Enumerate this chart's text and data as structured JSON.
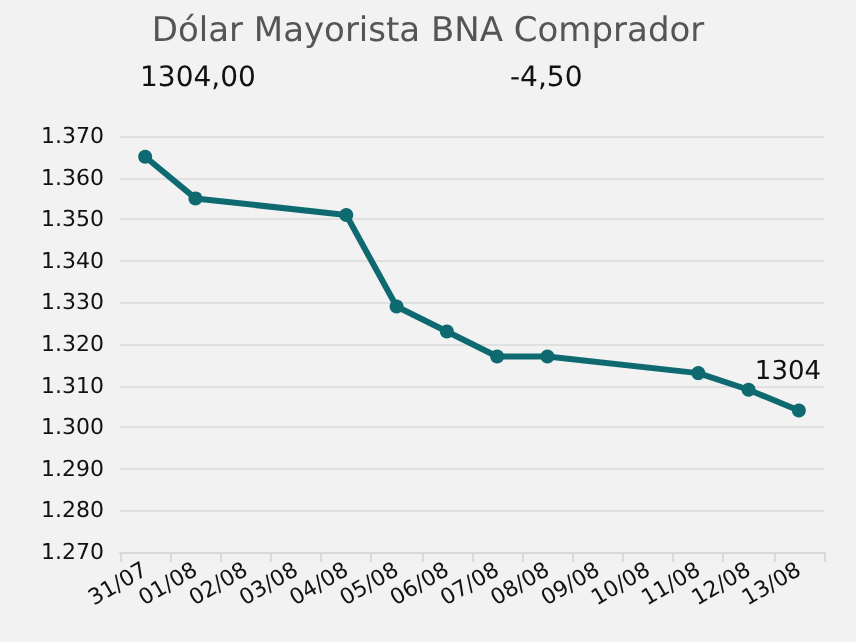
{
  "chart_data": {
    "type": "line",
    "title": "Dólar Mayorista BNA Comprador",
    "categories": [
      "31/07",
      "01/08",
      "02/08",
      "03/08",
      "04/08",
      "05/08",
      "06/08",
      "07/08",
      "08/08",
      "09/08",
      "10/08",
      "11/08",
      "12/08",
      "13/08"
    ],
    "series": [
      {
        "color": "#0e6a70",
        "values": [
          1365,
          1355,
          null,
          null,
          1351,
          1329,
          1323,
          1317,
          1317,
          null,
          null,
          1313,
          1309,
          1304
        ]
      }
    ],
    "ylim": [
      1270,
      1370
    ],
    "yticks": [
      {
        "value": 1270,
        "label": "1.270"
      },
      {
        "value": 1280,
        "label": "1.280"
      },
      {
        "value": 1290,
        "label": "1.290"
      },
      {
        "value": 1300,
        "label": "1.300"
      },
      {
        "value": 1310,
        "label": "1.310"
      },
      {
        "value": 1320,
        "label": "1.320"
      },
      {
        "value": 1330,
        "label": "1.330"
      },
      {
        "value": 1340,
        "label": "1.340"
      },
      {
        "value": 1350,
        "label": "1.350"
      },
      {
        "value": 1360,
        "label": "1.360"
      },
      {
        "value": 1370,
        "label": "1.370"
      }
    ],
    "annotations": [
      "1304,00",
      "-4,50",
      {
        "text": "1304",
        "x": "13/08",
        "y": 1304
      }
    ],
    "grid": "y",
    "marker": "circle",
    "line_style": "solid"
  }
}
